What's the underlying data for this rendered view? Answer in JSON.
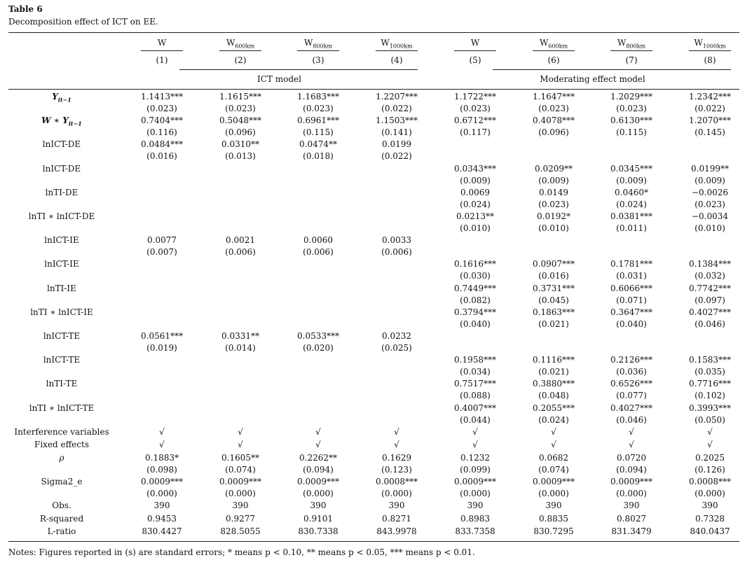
{
  "title": "Table 6",
  "caption": "Decomposition effect of ICT on EE.",
  "columns": [
    {
      "base": "W"
    },
    {
      "base": "W",
      "sub": "600km"
    },
    {
      "base": "W",
      "sub": "800km"
    },
    {
      "base": "W",
      "sub": "1000km"
    },
    {
      "base": "W"
    },
    {
      "base": "W",
      "sub": "600km"
    },
    {
      "base": "W",
      "sub": "800km"
    },
    {
      "base": "W",
      "sub": "1000km"
    }
  ],
  "numbers": [
    "(1)",
    "(2)",
    "(3)",
    "(4)",
    "(5)",
    "(6)",
    "(7)",
    "(8)"
  ],
  "groups": [
    "ICT model",
    "Moderating effect model"
  ],
  "rows": [
    {
      "label": "Y",
      "sub": "it−1",
      "coef": [
        "1.1413***",
        "1.1615***",
        "1.1683***",
        "1.2207***",
        "1.1722***",
        "1.1647***",
        "1.2029***",
        "1.2342***"
      ],
      "se": [
        "(0.023)",
        "(0.023)",
        "(0.023)",
        "(0.022)",
        "(0.023)",
        "(0.023)",
        "(0.023)",
        "(0.022)"
      ]
    },
    {
      "label": "W ∗ Y",
      "sub": "it−1",
      "coef": [
        "0.7404***",
        "0.5048***",
        "0.6961***",
        "1.1503***",
        "0.6712***",
        "0.4078***",
        "0.6130***",
        "1.2070***"
      ],
      "se": [
        "(0.116)",
        "(0.096)",
        "(0.115)",
        "(0.141)",
        "(0.117)",
        "(0.096)",
        "(0.115)",
        "(0.145)"
      ]
    },
    {
      "label": "lnICT-DE",
      "coef": [
        "0.0484***",
        "0.0310**",
        "0.0474**",
        "0.0199",
        null,
        null,
        null,
        null
      ],
      "se": [
        "(0.016)",
        "(0.013)",
        "(0.018)",
        "(0.022)",
        null,
        null,
        null,
        null
      ]
    },
    {
      "label": "lnICT-DE",
      "coef": [
        null,
        null,
        null,
        null,
        "0.0343***",
        "0.0209**",
        "0.0345***",
        "0.0199**"
      ],
      "se": [
        null,
        null,
        null,
        null,
        "(0.009)",
        "(0.009)",
        "(0.009)",
        "(0.009)"
      ]
    },
    {
      "label": "lnTI-DE",
      "coef": [
        null,
        null,
        null,
        null,
        "0.0069",
        "0.0149",
        "0.0460*",
        "−0.0026"
      ],
      "se": [
        null,
        null,
        null,
        null,
        "(0.024)",
        "(0.023)",
        "(0.024)",
        "(0.023)"
      ]
    },
    {
      "label": "lnTI ∗ lnICT-DE",
      "coef": [
        null,
        null,
        null,
        null,
        "0.0213**",
        "0.0192*",
        "0.0381***",
        "−0.0034"
      ],
      "se": [
        null,
        null,
        null,
        null,
        "(0.010)",
        "(0.010)",
        "(0.011)",
        "(0.010)"
      ]
    },
    {
      "label": "lnICT-IE",
      "coef": [
        "0.0077",
        "0.0021",
        "0.0060",
        "0.0033",
        null,
        null,
        null,
        null
      ],
      "se": [
        "(0.007)",
        "(0.006)",
        "(0.006)",
        "(0.006)",
        null,
        null,
        null,
        null
      ]
    },
    {
      "label": "lnICT-IE",
      "coef": [
        null,
        null,
        null,
        null,
        "0.1616***",
        "0.0907***",
        "0.1781***",
        "0.1384***"
      ],
      "se": [
        null,
        null,
        null,
        null,
        "(0.030)",
        "(0.016)",
        "(0.031)",
        "(0.032)"
      ]
    },
    {
      "label": "lnTI-IE",
      "coef": [
        null,
        null,
        null,
        null,
        "0.7449***",
        "0.3731***",
        "0.6066***",
        "0.7742***"
      ],
      "se": [
        null,
        null,
        null,
        null,
        "(0.082)",
        "(0.045)",
        "(0.071)",
        "(0.097)"
      ]
    },
    {
      "label": "lnTI ∗ lnICT-IE",
      "coef": [
        null,
        null,
        null,
        null,
        "0.3794***",
        "0.1863***",
        "0.3647***",
        "0.4027***"
      ],
      "se": [
        null,
        null,
        null,
        null,
        "(0.040)",
        "(0.021)",
        "(0.040)",
        "(0.046)"
      ]
    },
    {
      "label": "lnICT-TE",
      "coef": [
        "0.0561***",
        "0.0331**",
        "0.0533***",
        "0.0232",
        null,
        null,
        null,
        null
      ],
      "se": [
        "(0.019)",
        "(0.014)",
        "(0.020)",
        "(0.025)",
        null,
        null,
        null,
        null
      ]
    },
    {
      "label": "lnICT-TE",
      "coef": [
        null,
        null,
        null,
        null,
        "0.1958***",
        "0.1116***",
        "0.2126***",
        "0.1583***"
      ],
      "se": [
        null,
        null,
        null,
        null,
        "(0.034)",
        "(0.021)",
        "(0.036)",
        "(0.035)"
      ]
    },
    {
      "label": "lnTI-TE",
      "coef": [
        null,
        null,
        null,
        null,
        "0.7517***",
        "0.3880***",
        "0.6526***",
        "0.7716***"
      ],
      "se": [
        null,
        null,
        null,
        null,
        "(0.088)",
        "(0.048)",
        "(0.077)",
        "(0.102)"
      ]
    },
    {
      "label": "lnTI ∗ lnICT-TE",
      "coef": [
        null,
        null,
        null,
        null,
        "0.4007***",
        "0.2055***",
        "0.4027***",
        "0.3993***"
      ],
      "se": [
        null,
        null,
        null,
        null,
        "(0.044)",
        "(0.024)",
        "(0.046)",
        "(0.050)"
      ]
    },
    {
      "label": "Interference variables",
      "coef": [
        "√",
        "√",
        "√",
        "√",
        "√",
        "√",
        "√",
        "√"
      ]
    },
    {
      "label": "Fixed effects",
      "coef": [
        "√",
        "√",
        "√",
        "√",
        "√",
        "√",
        "√",
        "√"
      ]
    },
    {
      "label": "ρ",
      "coef": [
        "0.1883*",
        "0.1605**",
        "0.2262**",
        "0.1629",
        "0.1232",
        "0.0682",
        "0.0720",
        "0.2025"
      ],
      "se": [
        "(0.098)",
        "(0.074)",
        "(0.094)",
        "(0.123)",
        "(0.099)",
        "(0.074)",
        "(0.094)",
        "(0.126)"
      ]
    },
    {
      "label": "Sigma2_e",
      "coef": [
        "0.0009***",
        "0.0009***",
        "0.0009***",
        "0.0008***",
        "0.0009***",
        "0.0009***",
        "0.0009***",
        "0.0008***"
      ],
      "se": [
        "(0.000)",
        "(0.000)",
        "(0.000)",
        "(0.000)",
        "(0.000)",
        "(0.000)",
        "(0.000)",
        "(0.000)"
      ]
    },
    {
      "label": "Obs.",
      "coef": [
        "390",
        "390",
        "390",
        "390",
        "390",
        "390",
        "390",
        "390"
      ]
    },
    {
      "label": "R-squared",
      "coef": [
        "0.9453",
        "0.9277",
        "0.9101",
        "0.8271",
        "0.8983",
        "0.8835",
        "0.8027",
        "0.7328"
      ]
    },
    {
      "label": "L-ratio",
      "coef": [
        "830.4427",
        "828.5055",
        "830.7338",
        "843.9978",
        "833.7358",
        "830.7295",
        "831.3479",
        "840.0437"
      ]
    }
  ],
  "notes": "Notes: Figures reported in (s) are standard errors; * means p < 0.10, ** means p < 0.05, *** means p < 0.01."
}
